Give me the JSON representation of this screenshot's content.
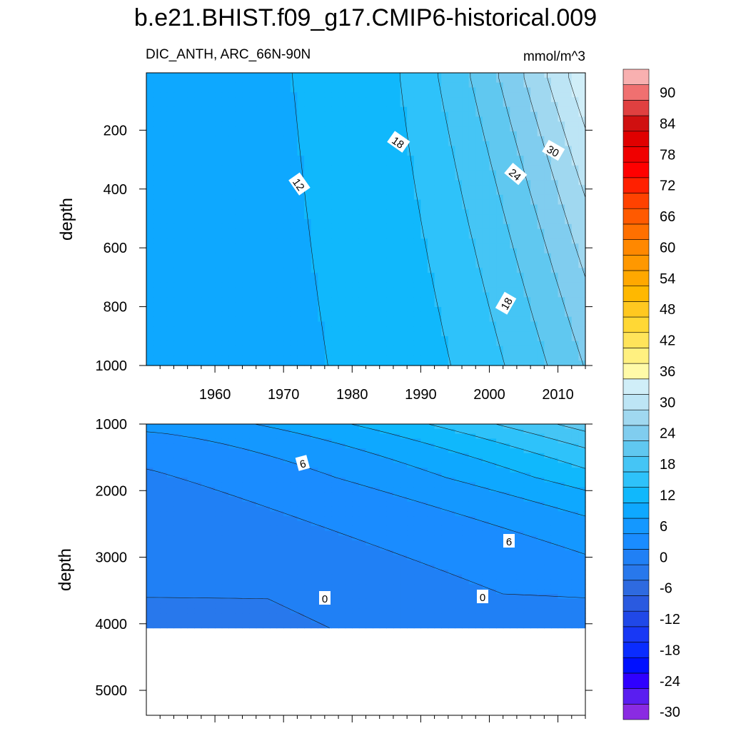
{
  "title": "b.e21.BHIST.f09_g17.CMIP6-historical.009",
  "left_subtitle": "DIC_ANTH, ARC_66N-90N",
  "units": "mmol/m^3",
  "ylabel_top": "depth",
  "ylabel_bottom": "depth",
  "colorbar": {
    "levels": [
      -30,
      -27,
      -24,
      -21,
      -18,
      -15,
      -12,
      -9,
      -6,
      -3,
      0,
      3,
      6,
      9,
      12,
      15,
      18,
      21,
      24,
      27,
      30,
      33,
      36,
      39,
      42,
      45,
      48,
      51,
      54,
      57,
      60,
      63,
      66,
      69,
      72,
      75,
      78,
      81,
      84,
      87,
      90,
      93
    ],
    "tick_labels": [
      "-30",
      "-24",
      "-18",
      "-12",
      "-6",
      "0",
      "6",
      "12",
      "18",
      "24",
      "30",
      "36",
      "42",
      "48",
      "54",
      "60",
      "66",
      "72",
      "78",
      "84",
      "90"
    ],
    "colors": [
      "#8a2be2",
      "#5a1ef0",
      "#2f00ff",
      "#0010ff",
      "#0a2cff",
      "#1838f5",
      "#2048e8",
      "#2a5ae0",
      "#2e6ae0",
      "#2878ec",
      "#2080f5",
      "#1a8cff",
      "#1498ff",
      "#0ea8ff",
      "#10b8fc",
      "#2ec2fa",
      "#45c5f5",
      "#60c8f0",
      "#80cdef",
      "#a0d8f0",
      "#bde5f5",
      "#d0eef8",
      "#fffaa8",
      "#fff080",
      "#ffe45a",
      "#ffd835",
      "#ffc820",
      "#ffb800",
      "#ffa800",
      "#ff9800",
      "#ff8800",
      "#ff7000",
      "#ff5a00",
      "#ff4200",
      "#ff2000",
      "#ff0000",
      "#f00000",
      "#e00000",
      "#d01010",
      "#e04040",
      "#f07070",
      "#f8b0b0"
    ]
  },
  "chart_data": [
    {
      "type": "contour",
      "panel": "upper",
      "title": "DIC_ANTH, ARC_66N-90N",
      "ylabel": "depth",
      "xticks": [
        1960,
        1970,
        1980,
        1990,
        2000,
        2010
      ],
      "yticks": [
        200,
        400,
        600,
        800,
        1000
      ],
      "xlim": [
        1950,
        2014
      ],
      "ylim": [
        1000,
        5
      ],
      "contour_labels": [
        "12",
        "18",
        "24",
        "30",
        "18"
      ],
      "contour_interval": 3
    },
    {
      "type": "contour",
      "panel": "lower",
      "ylabel": "depth",
      "yticks": [
        1000,
        2000,
        3000,
        4000,
        5000
      ],
      "xlim": [
        1950,
        2014
      ],
      "ylim": [
        5375,
        1000
      ],
      "contour_labels": [
        "6",
        "6",
        "0",
        "0"
      ],
      "contour_interval": 3
    }
  ]
}
